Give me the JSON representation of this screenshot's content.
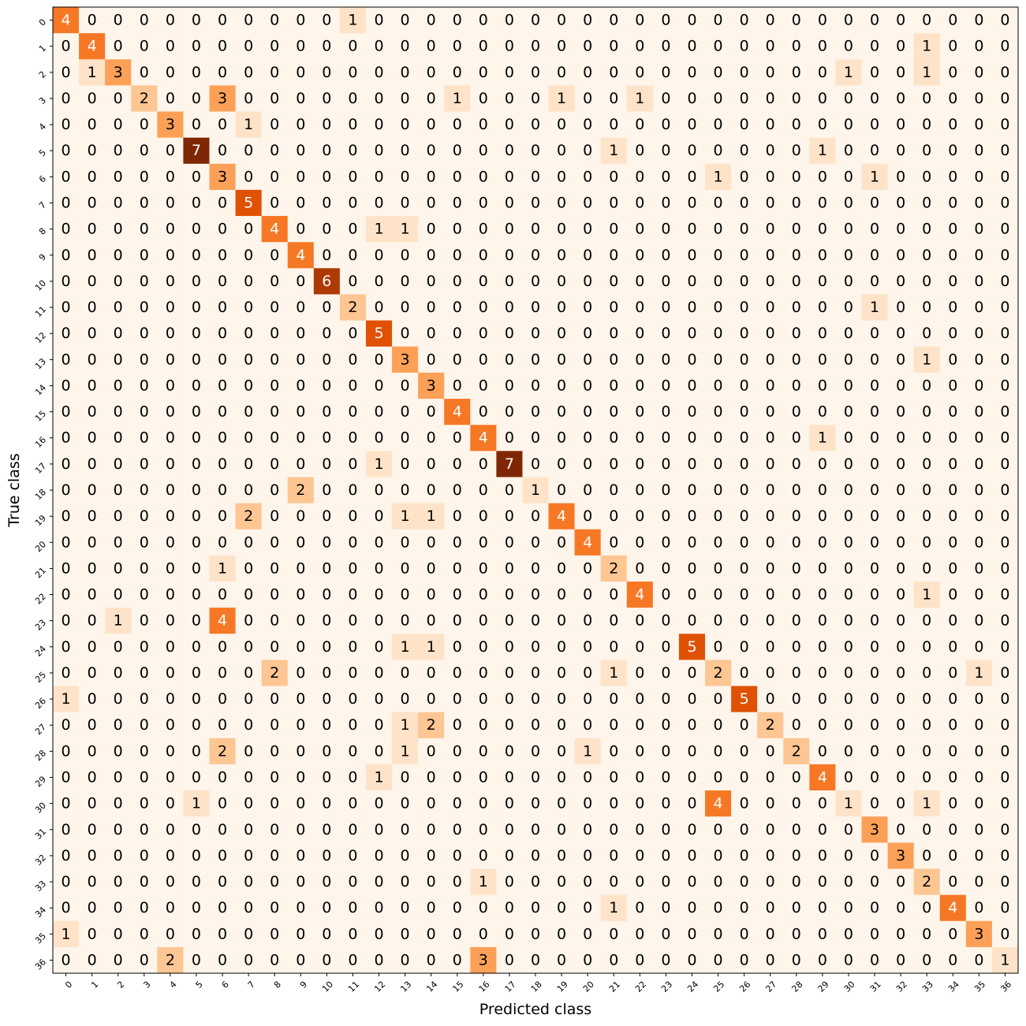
{
  "chart_data": {
    "type": "heatmap",
    "title": "",
    "xlabel": "Predicted class",
    "ylabel": "True class",
    "colormap": "Oranges",
    "value_range": [
      0,
      7
    ],
    "x_categories": [
      "0",
      "1",
      "2",
      "3",
      "4",
      "5",
      "6",
      "7",
      "8",
      "9",
      "10",
      "11",
      "12",
      "13",
      "14",
      "15",
      "16",
      "17",
      "18",
      "19",
      "20",
      "21",
      "22",
      "23",
      "24",
      "25",
      "26",
      "27",
      "28",
      "29",
      "30",
      "31",
      "32",
      "33",
      "34",
      "35",
      "36"
    ],
    "y_categories": [
      "0",
      "1",
      "2",
      "3",
      "4",
      "5",
      "6",
      "7",
      "8",
      "9",
      "10",
      "11",
      "12",
      "13",
      "14",
      "15",
      "16",
      "17",
      "18",
      "19",
      "20",
      "21",
      "22",
      "23",
      "24",
      "25",
      "26",
      "27",
      "28",
      "29",
      "30",
      "31",
      "32",
      "33",
      "34",
      "35",
      "36"
    ],
    "values": [
      [
        4,
        0,
        0,
        0,
        0,
        0,
        0,
        0,
        0,
        0,
        0,
        1,
        0,
        0,
        0,
        0,
        0,
        0,
        0,
        0,
        0,
        0,
        0,
        0,
        0,
        0,
        0,
        0,
        0,
        0,
        0,
        0,
        0,
        0,
        0,
        0,
        0
      ],
      [
        0,
        4,
        0,
        0,
        0,
        0,
        0,
        0,
        0,
        0,
        0,
        0,
        0,
        0,
        0,
        0,
        0,
        0,
        0,
        0,
        0,
        0,
        0,
        0,
        0,
        0,
        0,
        0,
        0,
        0,
        0,
        0,
        0,
        1,
        0,
        0,
        0
      ],
      [
        0,
        1,
        3,
        0,
        0,
        0,
        0,
        0,
        0,
        0,
        0,
        0,
        0,
        0,
        0,
        0,
        0,
        0,
        0,
        0,
        0,
        0,
        0,
        0,
        0,
        0,
        0,
        0,
        0,
        0,
        1,
        0,
        0,
        1,
        0,
        0,
        0
      ],
      [
        0,
        0,
        0,
        2,
        0,
        0,
        3,
        0,
        0,
        0,
        0,
        0,
        0,
        0,
        0,
        1,
        0,
        0,
        0,
        1,
        0,
        0,
        1,
        0,
        0,
        0,
        0,
        0,
        0,
        0,
        0,
        0,
        0,
        0,
        0,
        0,
        0
      ],
      [
        0,
        0,
        0,
        0,
        3,
        0,
        0,
        1,
        0,
        0,
        0,
        0,
        0,
        0,
        0,
        0,
        0,
        0,
        0,
        0,
        0,
        0,
        0,
        0,
        0,
        0,
        0,
        0,
        0,
        0,
        0,
        0,
        0,
        0,
        0,
        0,
        0
      ],
      [
        0,
        0,
        0,
        0,
        0,
        7,
        0,
        0,
        0,
        0,
        0,
        0,
        0,
        0,
        0,
        0,
        0,
        0,
        0,
        0,
        0,
        1,
        0,
        0,
        0,
        0,
        0,
        0,
        0,
        1,
        0,
        0,
        0,
        0,
        0,
        0,
        0
      ],
      [
        0,
        0,
        0,
        0,
        0,
        0,
        3,
        0,
        0,
        0,
        0,
        0,
        0,
        0,
        0,
        0,
        0,
        0,
        0,
        0,
        0,
        0,
        0,
        0,
        0,
        1,
        0,
        0,
        0,
        0,
        0,
        1,
        0,
        0,
        0,
        0,
        0
      ],
      [
        0,
        0,
        0,
        0,
        0,
        0,
        0,
        5,
        0,
        0,
        0,
        0,
        0,
        0,
        0,
        0,
        0,
        0,
        0,
        0,
        0,
        0,
        0,
        0,
        0,
        0,
        0,
        0,
        0,
        0,
        0,
        0,
        0,
        0,
        0,
        0,
        0
      ],
      [
        0,
        0,
        0,
        0,
        0,
        0,
        0,
        0,
        4,
        0,
        0,
        0,
        1,
        1,
        0,
        0,
        0,
        0,
        0,
        0,
        0,
        0,
        0,
        0,
        0,
        0,
        0,
        0,
        0,
        0,
        0,
        0,
        0,
        0,
        0,
        0,
        0
      ],
      [
        0,
        0,
        0,
        0,
        0,
        0,
        0,
        0,
        0,
        4,
        0,
        0,
        0,
        0,
        0,
        0,
        0,
        0,
        0,
        0,
        0,
        0,
        0,
        0,
        0,
        0,
        0,
        0,
        0,
        0,
        0,
        0,
        0,
        0,
        0,
        0,
        0
      ],
      [
        0,
        0,
        0,
        0,
        0,
        0,
        0,
        0,
        0,
        0,
        6,
        0,
        0,
        0,
        0,
        0,
        0,
        0,
        0,
        0,
        0,
        0,
        0,
        0,
        0,
        0,
        0,
        0,
        0,
        0,
        0,
        0,
        0,
        0,
        0,
        0,
        0
      ],
      [
        0,
        0,
        0,
        0,
        0,
        0,
        0,
        0,
        0,
        0,
        0,
        2,
        0,
        0,
        0,
        0,
        0,
        0,
        0,
        0,
        0,
        0,
        0,
        0,
        0,
        0,
        0,
        0,
        0,
        0,
        0,
        1,
        0,
        0,
        0,
        0,
        0
      ],
      [
        0,
        0,
        0,
        0,
        0,
        0,
        0,
        0,
        0,
        0,
        0,
        0,
        5,
        0,
        0,
        0,
        0,
        0,
        0,
        0,
        0,
        0,
        0,
        0,
        0,
        0,
        0,
        0,
        0,
        0,
        0,
        0,
        0,
        0,
        0,
        0,
        0
      ],
      [
        0,
        0,
        0,
        0,
        0,
        0,
        0,
        0,
        0,
        0,
        0,
        0,
        0,
        3,
        0,
        0,
        0,
        0,
        0,
        0,
        0,
        0,
        0,
        0,
        0,
        0,
        0,
        0,
        0,
        0,
        0,
        0,
        0,
        1,
        0,
        0,
        0
      ],
      [
        0,
        0,
        0,
        0,
        0,
        0,
        0,
        0,
        0,
        0,
        0,
        0,
        0,
        0,
        3,
        0,
        0,
        0,
        0,
        0,
        0,
        0,
        0,
        0,
        0,
        0,
        0,
        0,
        0,
        0,
        0,
        0,
        0,
        0,
        0,
        0,
        0
      ],
      [
        0,
        0,
        0,
        0,
        0,
        0,
        0,
        0,
        0,
        0,
        0,
        0,
        0,
        0,
        0,
        4,
        0,
        0,
        0,
        0,
        0,
        0,
        0,
        0,
        0,
        0,
        0,
        0,
        0,
        0,
        0,
        0,
        0,
        0,
        0,
        0,
        0
      ],
      [
        0,
        0,
        0,
        0,
        0,
        0,
        0,
        0,
        0,
        0,
        0,
        0,
        0,
        0,
        0,
        0,
        4,
        0,
        0,
        0,
        0,
        0,
        0,
        0,
        0,
        0,
        0,
        0,
        0,
        1,
        0,
        0,
        0,
        0,
        0,
        0,
        0
      ],
      [
        0,
        0,
        0,
        0,
        0,
        0,
        0,
        0,
        0,
        0,
        0,
        0,
        1,
        0,
        0,
        0,
        0,
        7,
        0,
        0,
        0,
        0,
        0,
        0,
        0,
        0,
        0,
        0,
        0,
        0,
        0,
        0,
        0,
        0,
        0,
        0,
        0
      ],
      [
        0,
        0,
        0,
        0,
        0,
        0,
        0,
        0,
        0,
        2,
        0,
        0,
        0,
        0,
        0,
        0,
        0,
        0,
        1,
        0,
        0,
        0,
        0,
        0,
        0,
        0,
        0,
        0,
        0,
        0,
        0,
        0,
        0,
        0,
        0,
        0,
        0
      ],
      [
        0,
        0,
        0,
        0,
        0,
        0,
        0,
        2,
        0,
        0,
        0,
        0,
        0,
        1,
        1,
        0,
        0,
        0,
        0,
        4,
        0,
        0,
        0,
        0,
        0,
        0,
        0,
        0,
        0,
        0,
        0,
        0,
        0,
        0,
        0,
        0,
        0
      ],
      [
        0,
        0,
        0,
        0,
        0,
        0,
        0,
        0,
        0,
        0,
        0,
        0,
        0,
        0,
        0,
        0,
        0,
        0,
        0,
        0,
        4,
        0,
        0,
        0,
        0,
        0,
        0,
        0,
        0,
        0,
        0,
        0,
        0,
        0,
        0,
        0,
        0
      ],
      [
        0,
        0,
        0,
        0,
        0,
        0,
        1,
        0,
        0,
        0,
        0,
        0,
        0,
        0,
        0,
        0,
        0,
        0,
        0,
        0,
        0,
        2,
        0,
        0,
        0,
        0,
        0,
        0,
        0,
        0,
        0,
        0,
        0,
        0,
        0,
        0,
        0
      ],
      [
        0,
        0,
        0,
        0,
        0,
        0,
        0,
        0,
        0,
        0,
        0,
        0,
        0,
        0,
        0,
        0,
        0,
        0,
        0,
        0,
        0,
        0,
        4,
        0,
        0,
        0,
        0,
        0,
        0,
        0,
        0,
        0,
        0,
        1,
        0,
        0,
        0
      ],
      [
        0,
        0,
        1,
        0,
        0,
        0,
        4,
        0,
        0,
        0,
        0,
        0,
        0,
        0,
        0,
        0,
        0,
        0,
        0,
        0,
        0,
        0,
        0,
        0,
        0,
        0,
        0,
        0,
        0,
        0,
        0,
        0,
        0,
        0,
        0,
        0,
        0
      ],
      [
        0,
        0,
        0,
        0,
        0,
        0,
        0,
        0,
        0,
        0,
        0,
        0,
        0,
        1,
        1,
        0,
        0,
        0,
        0,
        0,
        0,
        0,
        0,
        0,
        5,
        0,
        0,
        0,
        0,
        0,
        0,
        0,
        0,
        0,
        0,
        0,
        0
      ],
      [
        0,
        0,
        0,
        0,
        0,
        0,
        0,
        0,
        2,
        0,
        0,
        0,
        0,
        0,
        0,
        0,
        0,
        0,
        0,
        0,
        0,
        1,
        0,
        0,
        0,
        2,
        0,
        0,
        0,
        0,
        0,
        0,
        0,
        0,
        0,
        1,
        0
      ],
      [
        1,
        0,
        0,
        0,
        0,
        0,
        0,
        0,
        0,
        0,
        0,
        0,
        0,
        0,
        0,
        0,
        0,
        0,
        0,
        0,
        0,
        0,
        0,
        0,
        0,
        0,
        5,
        0,
        0,
        0,
        0,
        0,
        0,
        0,
        0,
        0,
        0
      ],
      [
        0,
        0,
        0,
        0,
        0,
        0,
        0,
        0,
        0,
        0,
        0,
        0,
        0,
        1,
        2,
        0,
        0,
        0,
        0,
        0,
        0,
        0,
        0,
        0,
        0,
        0,
        0,
        2,
        0,
        0,
        0,
        0,
        0,
        0,
        0,
        0,
        0
      ],
      [
        0,
        0,
        0,
        0,
        0,
        0,
        2,
        0,
        0,
        0,
        0,
        0,
        0,
        1,
        0,
        0,
        0,
        0,
        0,
        0,
        1,
        0,
        0,
        0,
        0,
        0,
        0,
        0,
        2,
        0,
        0,
        0,
        0,
        0,
        0,
        0,
        0
      ],
      [
        0,
        0,
        0,
        0,
        0,
        0,
        0,
        0,
        0,
        0,
        0,
        0,
        1,
        0,
        0,
        0,
        0,
        0,
        0,
        0,
        0,
        0,
        0,
        0,
        0,
        0,
        0,
        0,
        0,
        4,
        0,
        0,
        0,
        0,
        0,
        0,
        0
      ],
      [
        0,
        0,
        0,
        0,
        0,
        1,
        0,
        0,
        0,
        0,
        0,
        0,
        0,
        0,
        0,
        0,
        0,
        0,
        0,
        0,
        0,
        0,
        0,
        0,
        0,
        4,
        0,
        0,
        0,
        0,
        1,
        0,
        0,
        1,
        0,
        0,
        0
      ],
      [
        0,
        0,
        0,
        0,
        0,
        0,
        0,
        0,
        0,
        0,
        0,
        0,
        0,
        0,
        0,
        0,
        0,
        0,
        0,
        0,
        0,
        0,
        0,
        0,
        0,
        0,
        0,
        0,
        0,
        0,
        0,
        3,
        0,
        0,
        0,
        0,
        0
      ],
      [
        0,
        0,
        0,
        0,
        0,
        0,
        0,
        0,
        0,
        0,
        0,
        0,
        0,
        0,
        0,
        0,
        0,
        0,
        0,
        0,
        0,
        0,
        0,
        0,
        0,
        0,
        0,
        0,
        0,
        0,
        0,
        0,
        3,
        0,
        0,
        0,
        0
      ],
      [
        0,
        0,
        0,
        0,
        0,
        0,
        0,
        0,
        0,
        0,
        0,
        0,
        0,
        0,
        0,
        0,
        1,
        0,
        0,
        0,
        0,
        0,
        0,
        0,
        0,
        0,
        0,
        0,
        0,
        0,
        0,
        0,
        0,
        2,
        0,
        0,
        0
      ],
      [
        0,
        0,
        0,
        0,
        0,
        0,
        0,
        0,
        0,
        0,
        0,
        0,
        0,
        0,
        0,
        0,
        0,
        0,
        0,
        0,
        0,
        1,
        0,
        0,
        0,
        0,
        0,
        0,
        0,
        0,
        0,
        0,
        0,
        0,
        4,
        0,
        0
      ],
      [
        1,
        0,
        0,
        0,
        0,
        0,
        0,
        0,
        0,
        0,
        0,
        0,
        0,
        0,
        0,
        0,
        0,
        0,
        0,
        0,
        0,
        0,
        0,
        0,
        0,
        0,
        0,
        0,
        0,
        0,
        0,
        0,
        0,
        0,
        0,
        3,
        0
      ],
      [
        0,
        0,
        0,
        0,
        2,
        0,
        0,
        0,
        0,
        0,
        0,
        0,
        0,
        0,
        0,
        0,
        3,
        0,
        0,
        0,
        0,
        0,
        0,
        0,
        0,
        0,
        0,
        0,
        0,
        0,
        0,
        0,
        0,
        0,
        0,
        0,
        1
      ]
    ]
  }
}
